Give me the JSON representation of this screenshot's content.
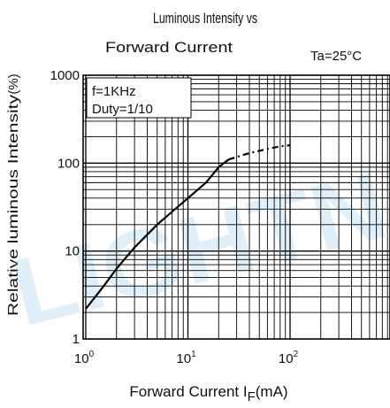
{
  "chart_data": {
    "type": "line",
    "title_line1": "Luminous Intensity vs",
    "title_line2": "Forward Current",
    "condition": "Ta=25°C",
    "xlabel_main": "Forward Current I",
    "xlabel_sub": "F",
    "xlabel_unit": "(mA)",
    "ylabel": "Relative luminous Intensity",
    "ylabel_unit": "(%)",
    "x_scale": "log",
    "y_scale": "log",
    "xlim": [
      1,
      300
    ],
    "ylim": [
      1,
      1000
    ],
    "x_ticks": [
      {
        "base": "10",
        "exp": "0",
        "value": 1
      },
      {
        "base": "10",
        "exp": "1",
        "value": 10
      },
      {
        "base": "10",
        "exp": "2",
        "value": 100
      }
    ],
    "y_ticks": [
      {
        "label": "1",
        "value": 1
      },
      {
        "label": "10",
        "value": 10
      },
      {
        "label": "100",
        "value": 100
      },
      {
        "label": "1000",
        "value": 1000
      }
    ],
    "grid": true,
    "annotation_lines": [
      "f=1KHz",
      "Duty=1/10"
    ],
    "watermark": "LIGHTN",
    "series": [
      {
        "solid": [
          [
            1,
            2.2
          ],
          [
            1.5,
            4
          ],
          [
            2,
            6.3
          ],
          [
            3,
            11
          ],
          [
            5,
            20
          ],
          [
            7,
            28
          ],
          [
            10,
            40
          ],
          [
            15,
            60
          ],
          [
            20,
            90
          ],
          [
            25,
            110
          ]
        ],
        "dashed": [
          [
            25,
            110
          ],
          [
            40,
            130
          ],
          [
            60,
            145
          ],
          [
            80,
            155
          ],
          [
            100,
            160
          ]
        ]
      }
    ]
  }
}
